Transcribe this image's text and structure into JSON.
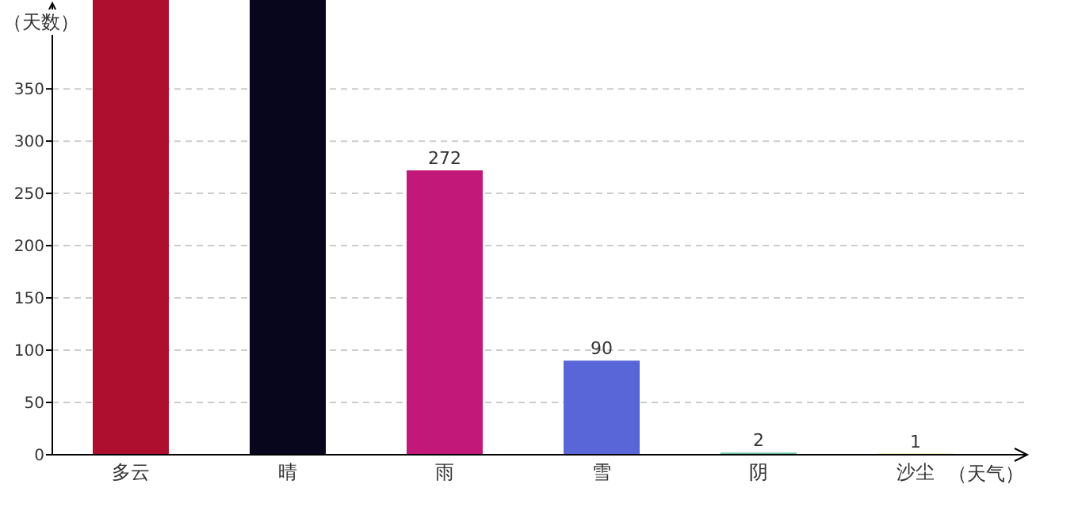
{
  "chart_data": {
    "type": "bar",
    "ylabel": "（天数）",
    "xlabel": "（天气）",
    "categories": [
      "多云",
      "晴",
      "雨",
      "雪",
      "阴",
      "沙尘"
    ],
    "values": [
      435,
      435,
      272,
      90,
      2,
      1
    ],
    "colors": [
      "#ae0f2e",
      "#07061c",
      "#c2187a",
      "#5866d8",
      "#66c2a5",
      "#e6d04a"
    ],
    "value_labels": [
      null,
      null,
      "272",
      "90",
      "2",
      "1"
    ],
    "ylim": [
      0,
      435
    ],
    "yticks": [
      0,
      50,
      100,
      150,
      200,
      250,
      300,
      350
    ],
    "grid": "y"
  }
}
